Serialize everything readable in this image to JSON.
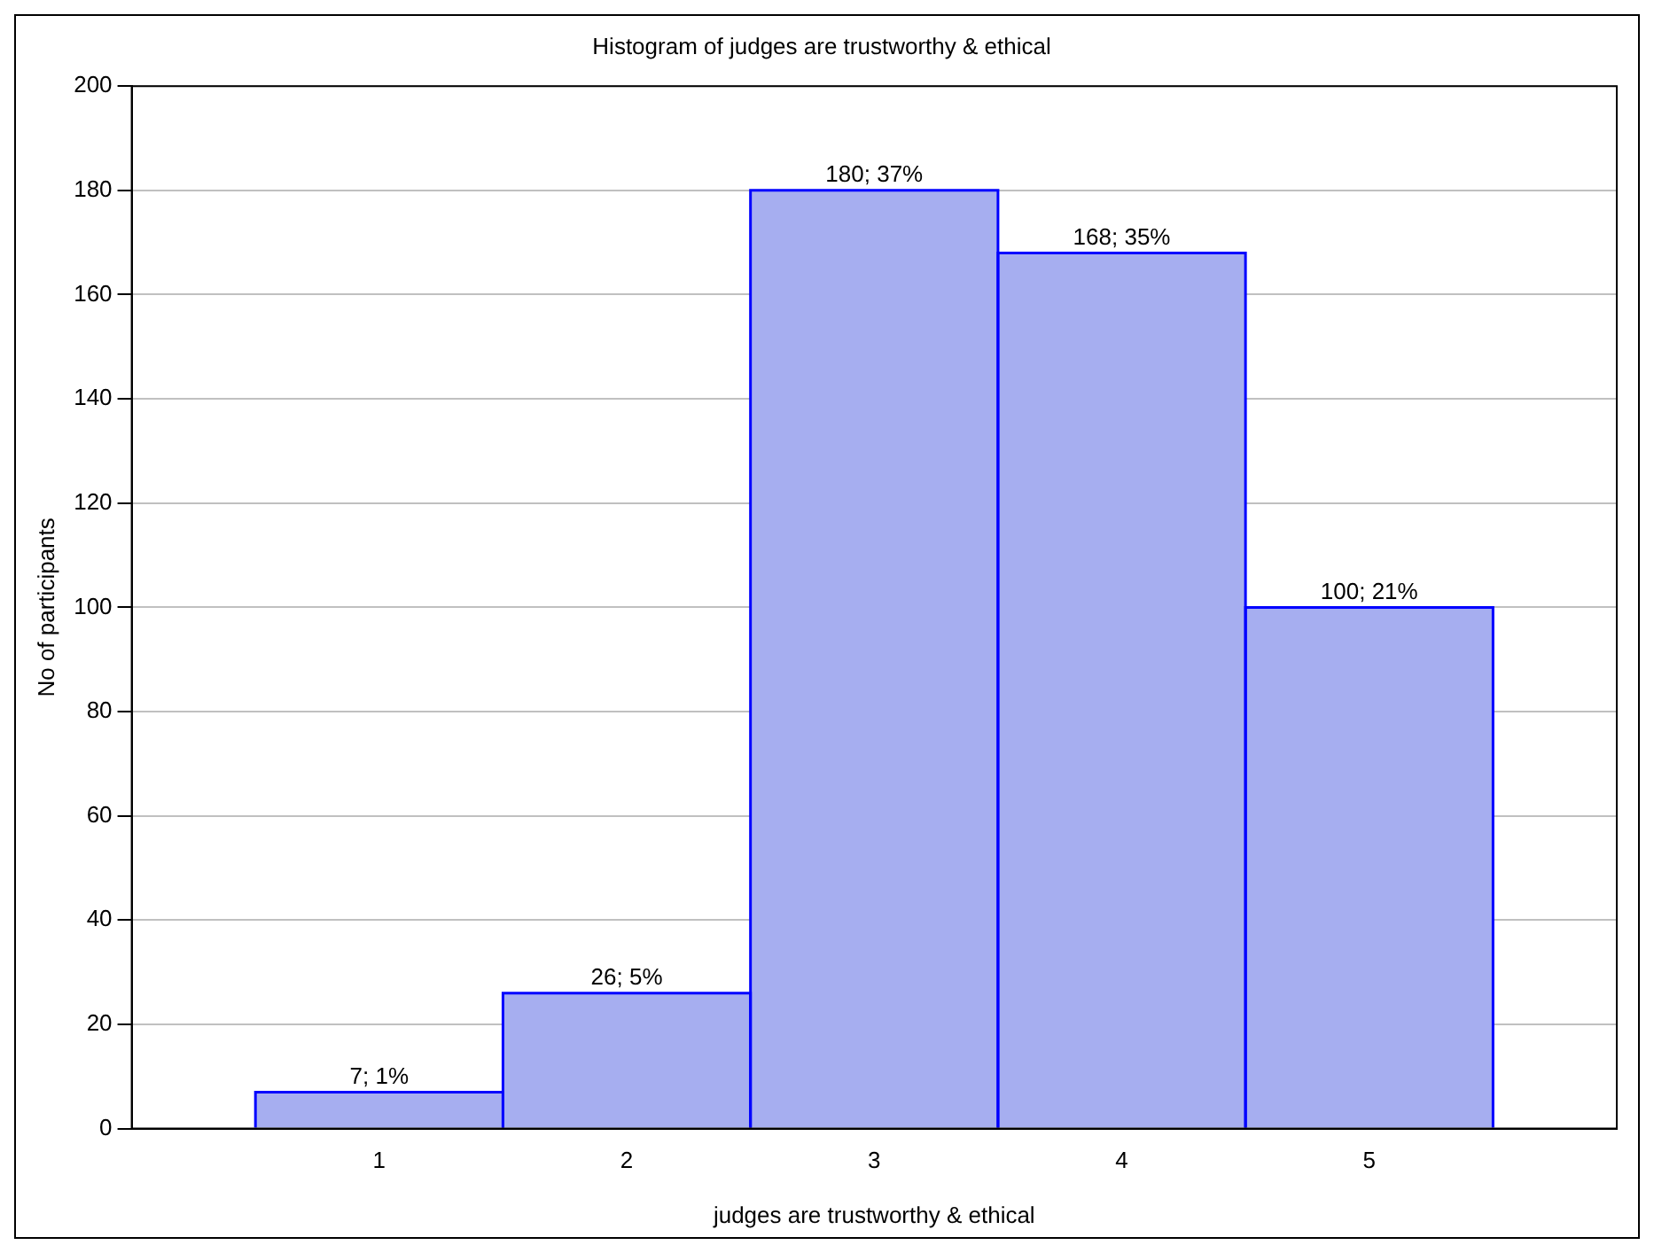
{
  "chart_data": {
    "type": "histogram",
    "title": "Histogram of judges are trustworthy & ethical",
    "xlabel": "judges are trustworthy & ethical",
    "ylabel": "No of participants",
    "bins": [
      0.5,
      1.5,
      2.5,
      3.5,
      4.5,
      5.5
    ],
    "values": [
      7,
      26,
      180,
      168,
      100
    ],
    "value_labels": [
      "7; 1%",
      "26; 5%",
      "180; 37%",
      "168; 35%",
      "100; 21%"
    ],
    "color": "#a6aef0",
    "xlim": [
      0,
      6
    ],
    "xticks": [
      1,
      2,
      3,
      4,
      5
    ],
    "ylim": [
      0,
      200
    ],
    "yticks": [
      0,
      20,
      40,
      60,
      80,
      100,
      120,
      140,
      160,
      180,
      200
    ],
    "grid": "y",
    "legend": false
  }
}
